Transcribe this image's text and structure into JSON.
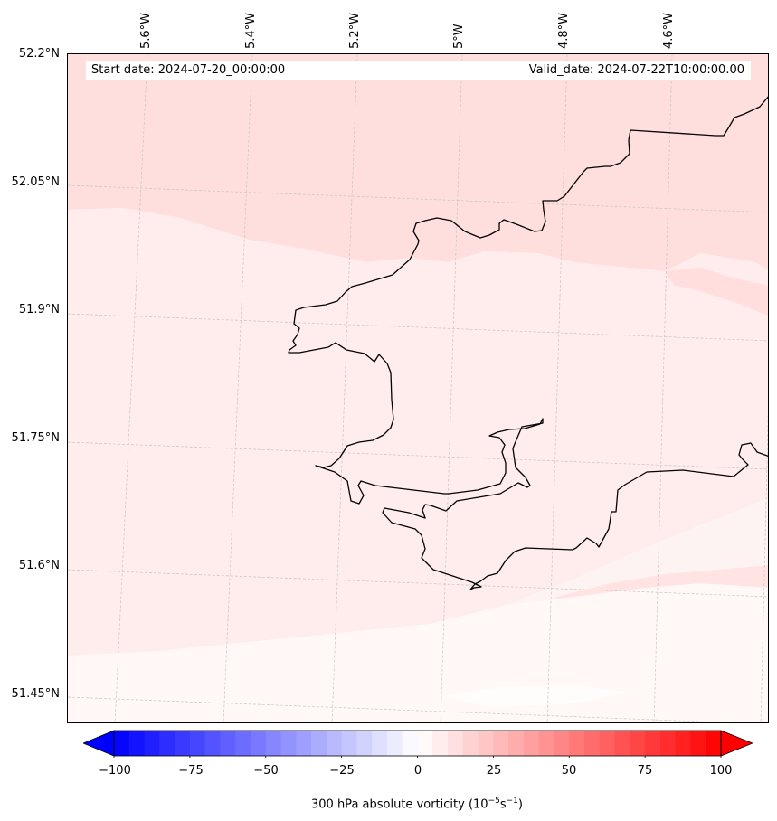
{
  "header": {
    "start_date": "Start date: 2024-07-20_00:00:00",
    "valid_date": "Valid_date: 2024-07-22T10:00:00.00"
  },
  "latitude_labels": [
    "52.2°N",
    "52.05°N",
    "51.9°N",
    "51.75°N",
    "51.6°N",
    "51.45°N"
  ],
  "longitude_labels": [
    "5.6°W",
    "5.4°W",
    "5.2°W",
    "5°W",
    "4.8°W",
    "4.6°W"
  ],
  "colorbar": {
    "ticks": [
      "−100",
      "−75",
      "−50",
      "−25",
      "0",
      "25",
      "50",
      "75",
      "100"
    ],
    "title_main": "300 hPa absolute vorticity (10",
    "title_exp1": "−5",
    "title_mid": "s",
    "title_exp2": "−1",
    "title_end": ")",
    "min_color": "#0000ff",
    "mid_color": "#ffffff",
    "max_color": "#ff0000"
  },
  "colors": {
    "land_outline": "#000000",
    "field_high": "#ffdedd",
    "field_mid": "#ffeceb",
    "field_low": "#fdf5f4",
    "grid": "#c8c8c8"
  }
}
